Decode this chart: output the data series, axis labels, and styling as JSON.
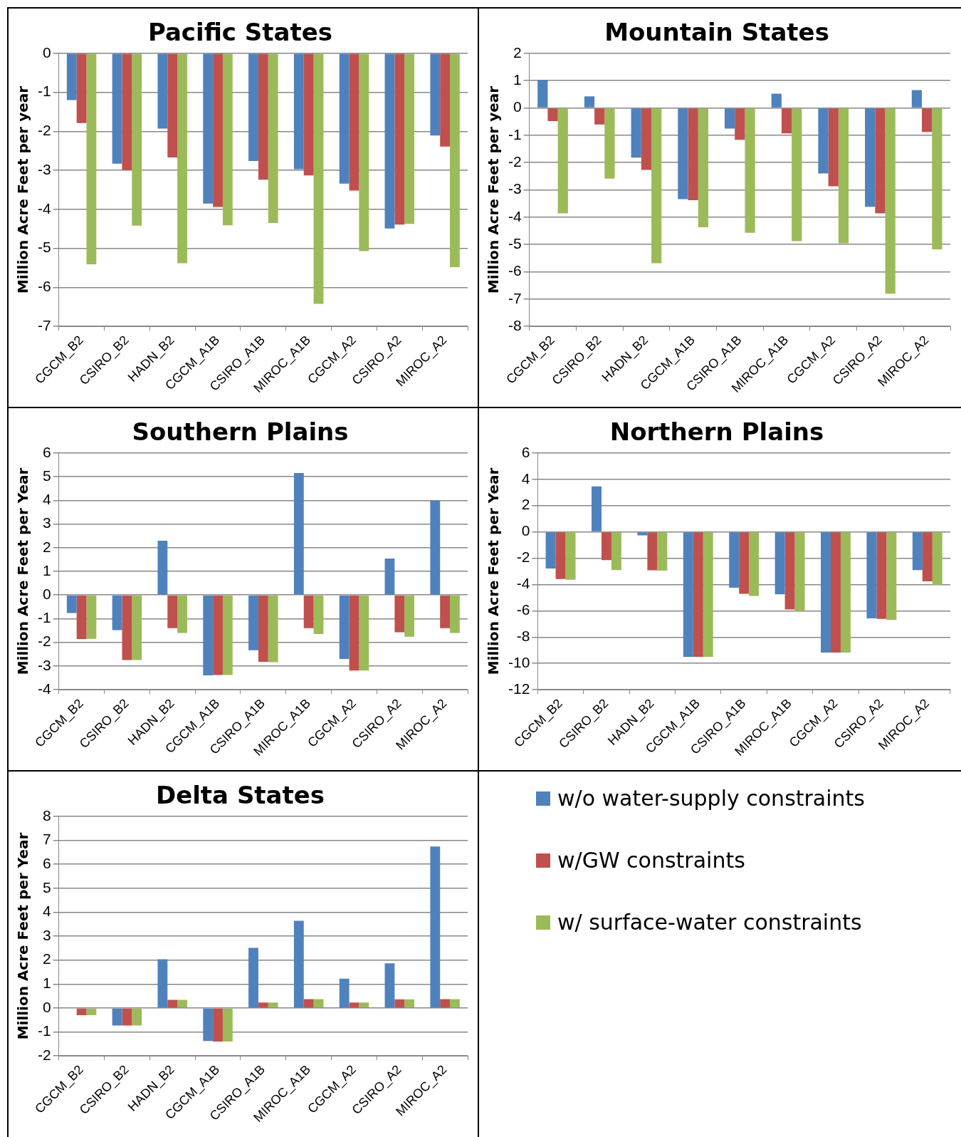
{
  "chart_data": [
    {
      "type": "bar",
      "title": "Pacific States",
      "ylabel": "Million Acre Feet per year",
      "categories": [
        "CGCM_B2",
        "CSIRO_B2",
        "HADN_B2",
        "CGCM_A1B",
        "CSIRO_A1B",
        "MIROC_A1B",
        "CGCM_A2",
        "CSIRO_A2",
        "MIROC_A2"
      ],
      "series": [
        {
          "name": "w/o water-supply constraints",
          "color": "#4f81bd",
          "values": [
            -1.2,
            -2.83,
            -1.93,
            -3.85,
            -2.76,
            -2.97,
            -3.34,
            -4.49,
            -2.11
          ]
        },
        {
          "name": "w/GW constraints",
          "color": "#c0504d",
          "values": [
            -1.79,
            -3.0,
            -2.67,
            -3.94,
            -3.24,
            -3.13,
            -3.52,
            -4.39,
            -2.39
          ]
        },
        {
          "name": "w/ surface-water constraints",
          "color": "#9bbb59",
          "values": [
            -5.41,
            -4.42,
            -5.38,
            -4.41,
            -4.35,
            -6.42,
            -5.07,
            -4.37,
            -5.48
          ]
        }
      ],
      "ylim": [
        -7,
        0
      ],
      "yticks": [
        -7,
        -6,
        -5,
        -4,
        -3,
        -2,
        -1,
        0
      ],
      "grid": "y",
      "legend": "bottom right"
    },
    {
      "type": "bar",
      "title": "Mountain States",
      "ylabel": "Million Acre Feet per year",
      "categories": [
        "CGCM_B2",
        "CSIRO_B2",
        "HADN_B2",
        "CGCM_A1B",
        "CSIRO_A1B",
        "MIROC_A1B",
        "CGCM_A2",
        "CSIRO_A2",
        "MIROC_A2"
      ],
      "series": [
        {
          "color": "#4f81bd",
          "values": [
            1.02,
            0.42,
            -1.82,
            -3.34,
            -0.76,
            0.52,
            -2.4,
            -3.62,
            0.65
          ]
        },
        {
          "color": "#c0504d",
          "values": [
            -0.48,
            -0.61,
            -2.27,
            -3.38,
            -1.17,
            -0.93,
            -2.87,
            -3.86,
            -0.88
          ]
        },
        {
          "color": "#9bbb59",
          "values": [
            -3.86,
            -2.59,
            -5.69,
            -4.37,
            -4.57,
            -4.88,
            -4.96,
            -6.8,
            -5.18
          ]
        }
      ],
      "ylim": [
        -8,
        2
      ],
      "yticks": [
        -8,
        -7,
        -6,
        -5,
        -4,
        -3,
        -2,
        -1,
        0,
        1,
        2
      ],
      "grid": "y"
    },
    {
      "type": "bar",
      "title": "Southern Plains",
      "ylabel": "Million Acre Feet per Year",
      "categories": [
        "CGCM_B2",
        "CSIRO_B2",
        "HADN_B2",
        "CGCM_A1B",
        "CSIRO_A1B",
        "MIROC_A1B",
        "CGCM_A2",
        "CSIRO_A2",
        "MIROC_A2"
      ],
      "series": [
        {
          "color": "#4f81bd",
          "values": [
            -0.76,
            -1.48,
            2.29,
            -3.39,
            -2.33,
            5.15,
            -2.7,
            1.54,
            3.99
          ]
        },
        {
          "color": "#c0504d",
          "values": [
            -1.86,
            -2.75,
            -1.4,
            -3.38,
            -2.82,
            -1.4,
            -3.19,
            -1.57,
            -1.4
          ]
        },
        {
          "color": "#9bbb59",
          "values": [
            -1.85,
            -2.75,
            -1.6,
            -3.38,
            -2.84,
            -1.65,
            -3.19,
            -1.76,
            -1.6
          ]
        }
      ],
      "ylim": [
        -4,
        6
      ],
      "yticks": [
        -4,
        -3,
        -2,
        -1,
        0,
        1,
        2,
        3,
        4,
        5,
        6
      ],
      "grid": "y"
    },
    {
      "type": "bar",
      "title": "Northern Plains",
      "ylabel": "Million Acre Feet per Year",
      "categories": [
        "CGCM_B2",
        "CSIRO_B2",
        "HADN_B2",
        "CGCM_A1B",
        "CSIRO_A1B",
        "MIROC_A1B",
        "CGCM_A2",
        "CSIRO_A2",
        "MIROC_A2"
      ],
      "series": [
        {
          "color": "#4f81bd",
          "values": [
            -2.78,
            3.46,
            -0.27,
            -9.5,
            -4.25,
            -4.75,
            -9.18,
            -6.58,
            -2.9
          ]
        },
        {
          "color": "#c0504d",
          "values": [
            -3.58,
            -2.15,
            -2.92,
            -9.5,
            -4.71,
            -5.9,
            -9.18,
            -6.61,
            -3.76
          ]
        },
        {
          "color": "#9bbb59",
          "values": [
            -3.64,
            -2.9,
            -2.95,
            -9.5,
            -4.87,
            -6.0,
            -9.18,
            -6.7,
            -4.03
          ]
        }
      ],
      "ylim": [
        -12,
        6
      ],
      "yticks": [
        -12,
        -10,
        -8,
        -6,
        -4,
        -2,
        0,
        2,
        4,
        6
      ],
      "grid": "y"
    },
    {
      "type": "bar",
      "title": "Delta States",
      "ylabel": "Million Acre Feet per Year",
      "categories": [
        "CGCM_B2",
        "CSIRO_B2",
        "HADN_B2",
        "CGCM_A1B",
        "CSIRO_A1B",
        "MIROC_A1B",
        "CGCM_A2",
        "CSIRO_A2",
        "MIROC_A2"
      ],
      "series": [
        {
          "color": "#4f81bd",
          "values": [
            0,
            -0.73,
            2.03,
            -1.38,
            2.51,
            3.64,
            1.22,
            1.86,
            6.74
          ]
        },
        {
          "color": "#c0504d",
          "values": [
            -0.3,
            -0.73,
            0.34,
            -1.4,
            0.23,
            0.37,
            0.23,
            0.36,
            0.37
          ]
        },
        {
          "color": "#9bbb59",
          "values": [
            -0.3,
            -0.73,
            0.34,
            -1.4,
            0.23,
            0.37,
            0.23,
            0.36,
            0.37
          ]
        }
      ],
      "ylim": [
        -2,
        8
      ],
      "yticks": [
        -2,
        -1,
        0,
        1,
        2,
        3,
        4,
        5,
        6,
        7,
        8
      ],
      "grid": "y"
    }
  ]
}
